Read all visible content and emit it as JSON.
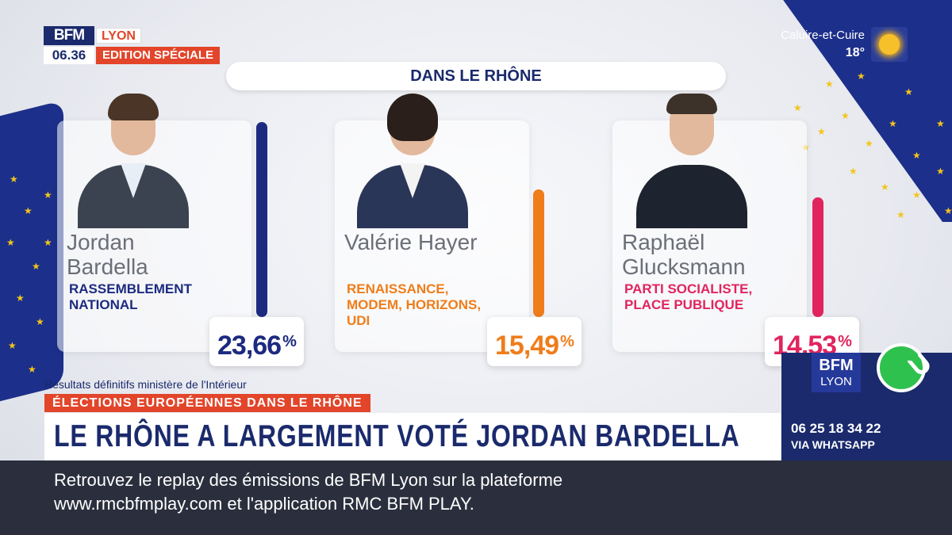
{
  "branding": {
    "logo": "BFM",
    "city": "LYON",
    "time": "06.36",
    "edition": "EDITION SPÉCIALE"
  },
  "weather": {
    "city": "Caluire-et-Cuire",
    "temp": "18°",
    "icon": "sun-icon"
  },
  "header": {
    "title": "DANS LE RHÔNE"
  },
  "candidates": [
    {
      "first": "Jordan",
      "last": "Bardella",
      "party_line1": "RASSEMBLEMENT",
      "party_line2": "NATIONAL",
      "party_line3": "",
      "pct": "23,66",
      "pct_symbol": "%",
      "color": "#1c2a80",
      "value": 23.66
    },
    {
      "first": "Valérie Hayer",
      "last": "",
      "party_line1": "RENAISSANCE,",
      "party_line2": "MODEM, HORIZONS,",
      "party_line3": "UDI",
      "pct": "15,49",
      "pct_symbol": "%",
      "color": "#ef7d1a",
      "value": 15.49
    },
    {
      "first": "Raphaël",
      "last": "Glucksmann",
      "party_line1": "PARTI SOCIALISTE,",
      "party_line2": "PLACE PUBLIQUE",
      "party_line3": "",
      "pct": "14,53",
      "pct_symbol": "%",
      "color": "#e2245e",
      "value": 14.53
    }
  ],
  "source": "Résultats définitifs ministère de l'Intérieur",
  "lower_third": {
    "subtitle": "ÉLECTIONS EUROPÉENNES DANS LE RHÔNE",
    "headline": "LE RHÔNE A LARGEMENT VOTÉ JORDAN BARDELLA"
  },
  "whatsapp": {
    "logo": "BFM",
    "city": "LYON",
    "number": "06 25 18 34 22",
    "via": "VIA WHATSAPP",
    "icon": "whatsapp-icon"
  },
  "ticker": {
    "line1": "Retrouvez le replay des émissions de BFM Lyon sur la plateforme",
    "line2": "www.rmcbfmplay.com et l'application RMC BFM PLAY."
  },
  "colors": {
    "navy": "#1a2a6c",
    "red": "#e2452a",
    "eu_blue": "#1c2f8a",
    "star": "#f3c51a"
  }
}
